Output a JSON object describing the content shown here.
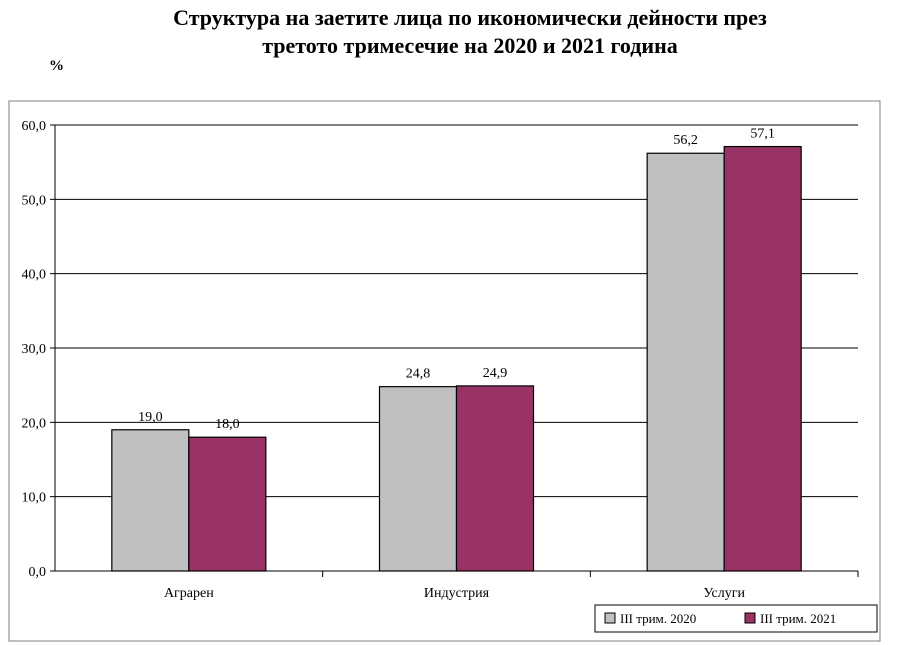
{
  "chart_data": {
    "type": "bar",
    "title_lines": [
      "Структура на заетите лица по икономически дейности през",
      "третото тримесечие на 2020 и 2021 година"
    ],
    "unit_label": "%",
    "categories": [
      "Аграрен",
      "Индустрия",
      "Услуги"
    ],
    "series": [
      {
        "name": "III трим. 2020",
        "values": [
          19.0,
          24.8,
          56.2
        ],
        "color": "#c0c0c0"
      },
      {
        "name": "III трим. 2021",
        "values": [
          18.0,
          24.9,
          57.1
        ],
        "color": "#993366"
      }
    ],
    "ylim": [
      0,
      60
    ],
    "yticks": [
      "0,0",
      "10,0",
      "20,0",
      "30,0",
      "40,0",
      "50,0",
      "60,0"
    ],
    "value_labels": [
      [
        "19,0",
        "24,8",
        "56,2"
      ],
      [
        "18,0",
        "24,9",
        "57,1"
      ]
    ],
    "grid": true,
    "legend_position": "bottom-right"
  }
}
